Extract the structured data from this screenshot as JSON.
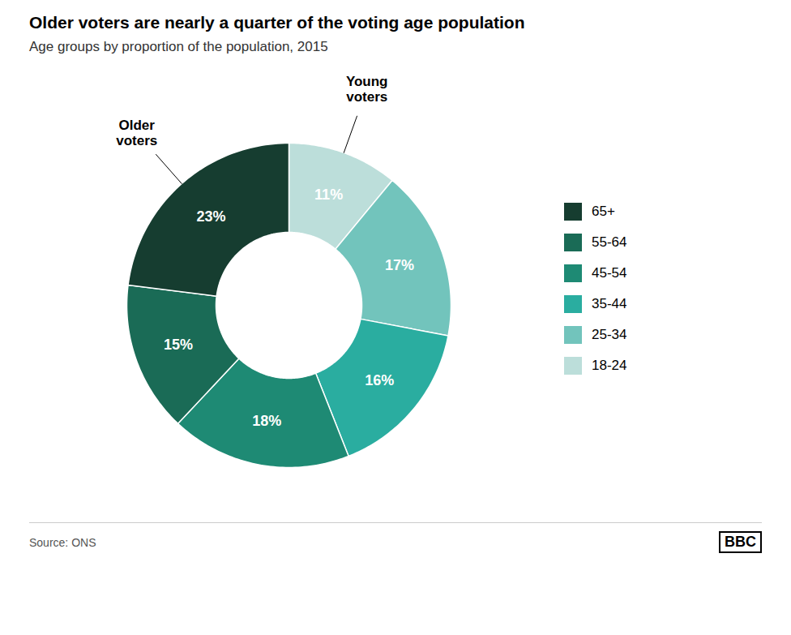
{
  "chart_data": {
    "type": "donut",
    "title": "Older voters are nearly a quarter of the voting age population",
    "subtitle": "Age groups by proportion of the population, 2015",
    "categories": [
      "18-24",
      "25-34",
      "35-44",
      "45-54",
      "55-64",
      "65+"
    ],
    "values": [
      11,
      17,
      16,
      18,
      15,
      23
    ],
    "value_labels": [
      "11%",
      "17%",
      "16%",
      "18%",
      "15%",
      "23%"
    ],
    "colors": [
      "#bcdeda",
      "#72c4bc",
      "#2aada0",
      "#1e8a74",
      "#1a6b56",
      "#163d30"
    ],
    "data_labels": true,
    "legend": "right",
    "tick_labels": false,
    "annotations": [
      {
        "text": "Older\nvoters",
        "category": "65+"
      },
      {
        "text": "Young\nvoters",
        "category": "18-24"
      }
    ],
    "source": "Source: ONS",
    "credit": "BBC"
  }
}
